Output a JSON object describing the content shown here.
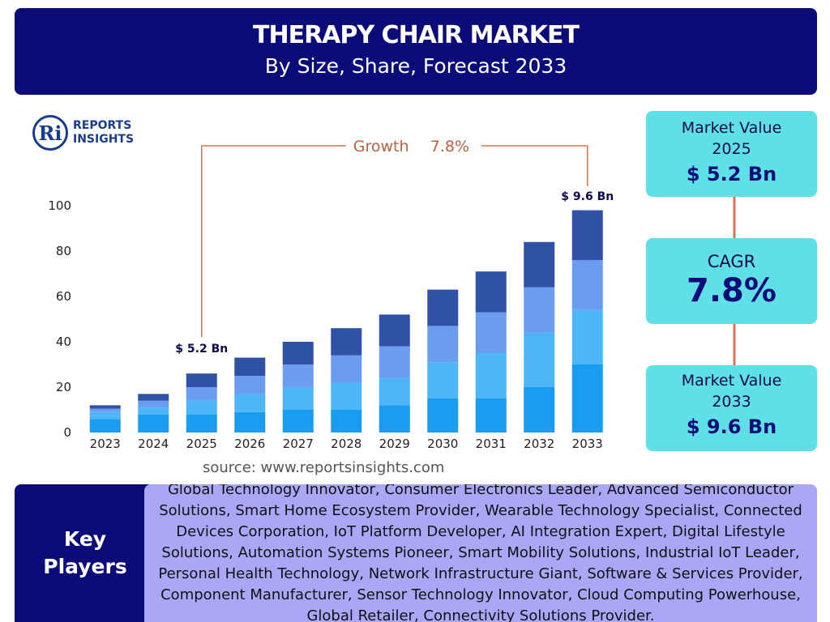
{
  "header": {
    "title": "THERAPY CHAIR MARKET",
    "subtitle": "By Size, Share, Forecast 2033"
  },
  "logo": {
    "line1": "REPORTS",
    "line2": "INSIGHTS"
  },
  "chart_data": {
    "type": "bar",
    "stacked": true,
    "categories": [
      "2023",
      "2024",
      "2025",
      "2026",
      "2027",
      "2028",
      "2029",
      "2030",
      "2031",
      "2032",
      "2033"
    ],
    "series": [
      {
        "color": "#1a9cf0",
        "values": [
          6,
          8,
          8,
          9,
          10,
          10,
          12,
          15,
          15,
          20,
          30
        ]
      },
      {
        "color": "#4cb6f6",
        "values": [
          3,
          3,
          6,
          8,
          10,
          12,
          12,
          16,
          20,
          24,
          24
        ]
      },
      {
        "color": "#6a9cf0",
        "values": [
          1.5,
          3,
          6,
          8,
          10,
          12,
          14,
          16,
          18,
          20,
          22
        ]
      },
      {
        "color": "#2f52a6",
        "values": [
          1.5,
          3,
          6,
          8,
          10,
          12,
          14,
          16,
          18,
          20,
          22
        ]
      }
    ],
    "ylim": [
      0,
      100
    ],
    "yticks": [
      0,
      20,
      40,
      60,
      80,
      100
    ],
    "annotations": {
      "start": "$ 5.2 Bn",
      "end": "$ 9.6 Bn",
      "growth_label": "Growth",
      "growth_value": "7.8%"
    }
  },
  "source": "source: www.reportsinsights.com",
  "panels": [
    {
      "label": "Market Value",
      "year": "2025",
      "value": "$ 5.2 Bn"
    },
    {
      "label": "CAGR",
      "value": "7.8%"
    },
    {
      "label": "Market Value",
      "year": "2033",
      "value": "$ 9.6 Bn"
    }
  ],
  "key_players": {
    "label": "Key Players",
    "text": "Global Technology Innovator, Consumer Electronics Leader, Advanced Semiconductor Solutions, Smart Home Ecosystem Provider, Wearable Technology Specialist, Connected Devices Corporation, IoT Platform Developer, AI Integration Expert, Digital Lifestyle Solutions, Automation Systems Pioneer, Smart Mobility Solutions, Industrial IoT Leader, Personal Health Technology, Network Infrastructure Giant, Software & Services Provider, Component Manufacturer, Sensor Technology Innovator, Cloud Computing Powerhouse, Global Retailer, Connectivity Solutions Provider."
  }
}
